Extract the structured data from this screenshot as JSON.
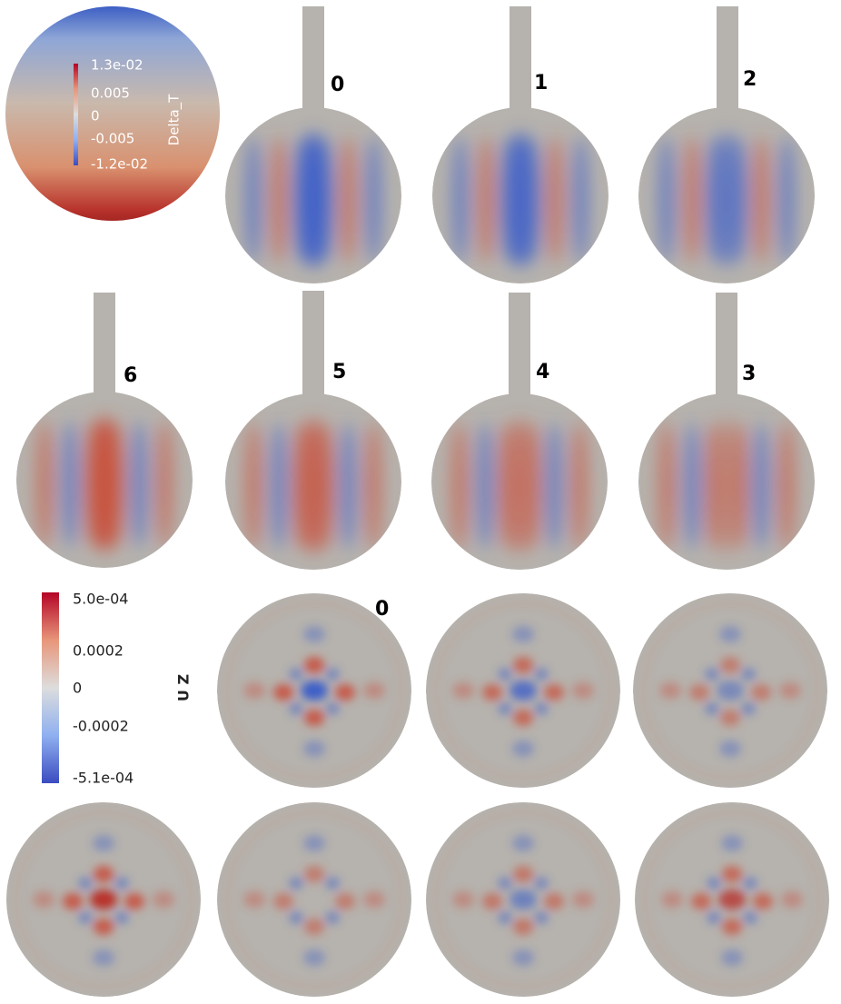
{
  "colorbar_top": {
    "title": "Delta_T",
    "ticks": [
      "1.3e-02",
      "0.005",
      "0",
      "-0.005",
      "-1.2e-02"
    ]
  },
  "temperature_panels": [
    {
      "label": "0"
    },
    {
      "label": "1"
    },
    {
      "label": "2"
    },
    {
      "label": "6"
    },
    {
      "label": "5"
    },
    {
      "label": "4"
    },
    {
      "label": "3"
    }
  ],
  "colorbar_bottom": {
    "title": "U Z",
    "ticks": [
      "5.0e-04",
      "0.0002",
      "0",
      "-0.0002",
      "-5.1e-04"
    ]
  },
  "velocity_panels": [
    {
      "label": "0"
    }
  ]
}
